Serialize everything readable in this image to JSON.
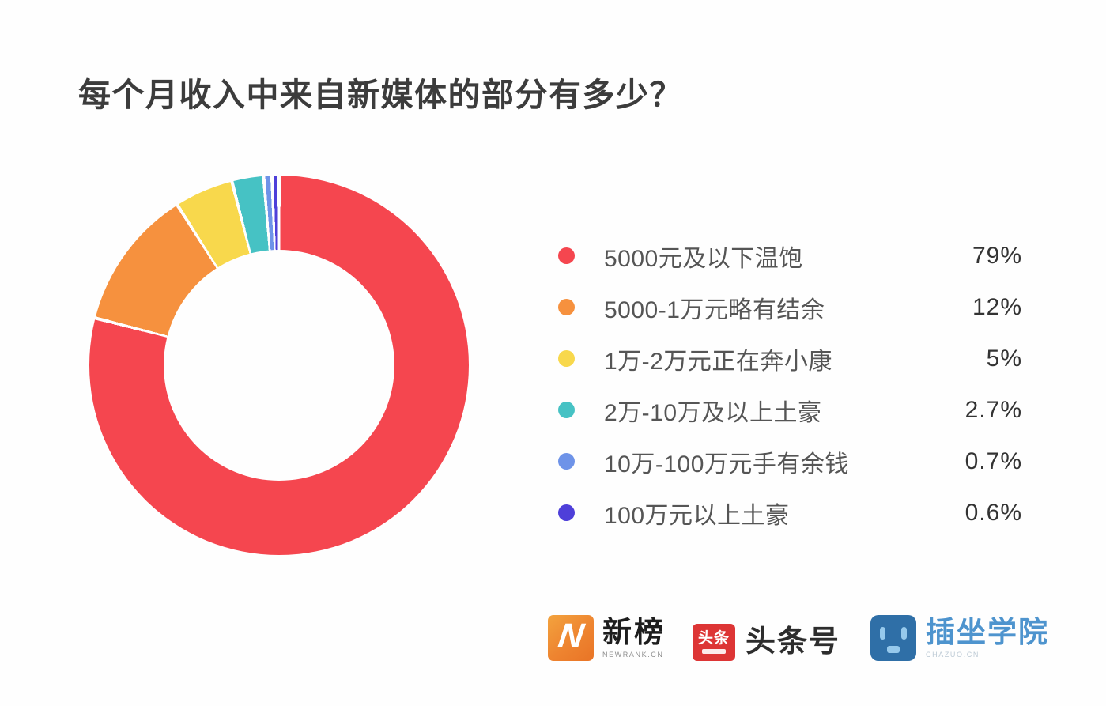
{
  "title": "每个月收入中来自新媒体的部分有多少？",
  "chart_data": {
    "type": "pie",
    "variant": "donut",
    "title": "每个月收入中来自新媒体的部分有多少？",
    "categories": [
      "5000元及以下温饱",
      "5000-1万元略有结余",
      "1万-2万元正在奔小康",
      "2万-10万及以上土豪",
      "10万-100万元手有余钱",
      "100万元以上土豪"
    ],
    "values": [
      79,
      12,
      5,
      2.7,
      0.7,
      0.6
    ],
    "percent_labels": [
      "79%",
      "12%",
      "5%",
      "2.7%",
      "0.7%",
      "0.6%"
    ],
    "colors": [
      "#f5464f",
      "#f6913e",
      "#f8d84c",
      "#46c2c4",
      "#6e93e8",
      "#4e3fd9"
    ],
    "start_angle": "top",
    "direction": "clockwise",
    "slice_gap_deg": 1,
    "inner_radius_ratio": 0.61,
    "legend_position": "right"
  },
  "legend": {
    "items": [
      {
        "label": "5000元及以下温饱",
        "percent": "79%"
      },
      {
        "label": "5000-1万元略有结余",
        "percent": "12%"
      },
      {
        "label": "1万-2万元正在奔小康",
        "percent": "5%"
      },
      {
        "label": "2万-10万及以上土豪",
        "percent": "2.7%"
      },
      {
        "label": "10万-100万元手有余钱",
        "percent": "0.7%"
      },
      {
        "label": "100万元以上土豪",
        "percent": "0.6%"
      }
    ]
  },
  "footer": {
    "logos": [
      {
        "name": "新榜",
        "icon_letter": "N",
        "subtext": "NEWRANK.CN",
        "brand_color": "#ee8430"
      },
      {
        "name": "头条号",
        "icon_text": "头条",
        "brand_color": "#dd3535"
      },
      {
        "name": "插坐学院",
        "subtext": "CHAZUO.CN",
        "brand_color": "#2f6fa7"
      }
    ]
  }
}
